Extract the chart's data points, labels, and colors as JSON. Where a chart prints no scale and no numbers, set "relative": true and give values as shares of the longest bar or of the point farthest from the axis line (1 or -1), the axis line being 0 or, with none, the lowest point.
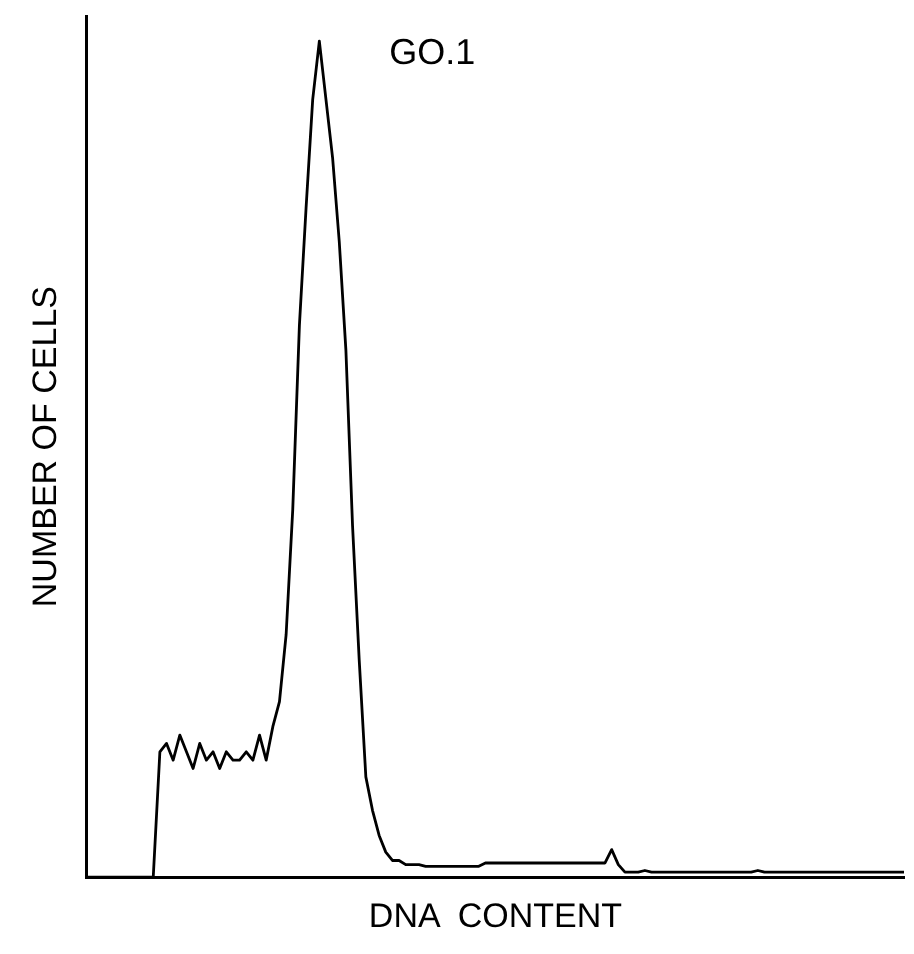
{
  "chart_data": {
    "type": "line",
    "relative": true,
    "xlabel": "DNA  CONTENT",
    "ylabel": "NUMBER OF CELLS",
    "annotations": [
      "GO.1"
    ],
    "marker": "none",
    "grid": false,
    "legend": false,
    "categories": [
      null,
      null,
      null,
      null,
      null,
      null,
      null,
      null,
      null,
      null,
      null,
      null,
      null,
      null,
      null,
      null,
      null,
      null,
      null,
      null,
      null,
      null,
      null,
      null,
      null,
      null,
      null,
      null,
      null,
      null,
      null,
      null,
      null,
      null,
      null,
      null,
      null,
      null,
      null,
      null,
      null,
      null,
      null,
      null,
      null,
      null,
      null,
      null,
      null,
      null,
      null,
      null,
      null,
      null,
      null,
      null,
      null,
      null,
      null,
      null,
      null,
      null,
      null,
      null,
      null,
      null,
      null,
      null,
      null,
      null,
      null,
      null,
      null,
      null,
      null,
      null,
      null,
      null,
      null,
      null,
      null,
      null,
      null,
      null,
      null,
      null,
      null,
      null,
      null,
      null,
      null,
      null,
      null,
      null,
      null,
      null,
      null,
      null,
      null,
      null,
      null,
      null,
      null,
      null,
      null,
      null,
      null,
      null,
      null,
      null,
      null,
      null,
      null,
      null,
      null,
      null,
      null,
      null,
      null,
      null,
      null,
      null,
      null,
      null
    ],
    "series": [
      {
        "color": "#000000",
        "values": [
          0,
          0,
          0,
          0,
          0,
          0,
          0,
          0,
          0,
          0,
          0,
          0.15,
          0.16,
          0.14,
          0.17,
          0.15,
          0.13,
          0.16,
          0.14,
          0.15,
          0.13,
          0.15,
          0.14,
          0.14,
          0.15,
          0.14,
          0.17,
          0.14,
          0.18,
          0.21,
          0.29,
          0.44,
          0.66,
          0.8,
          0.93,
          1,
          0.93,
          0.86,
          0.76,
          0.63,
          0.42,
          0.26,
          0.12,
          0.08,
          0.05,
          0.03,
          0.02,
          0.02,
          0.015,
          0.015,
          0.015,
          0.013,
          0.013,
          0.013,
          0.013,
          0.013,
          0.013,
          0.013,
          0.013,
          0.013,
          0.017,
          0.017,
          0.017,
          0.017,
          0.017,
          0.017,
          0.017,
          0.017,
          0.017,
          0.017,
          0.017,
          0.017,
          0.017,
          0.017,
          0.017,
          0.017,
          0.017,
          0.017,
          0.017,
          0.033,
          0.015,
          0.006,
          0.006,
          0.006,
          0.008,
          0.006,
          0.006,
          0.006,
          0.006,
          0.006,
          0.006,
          0.006,
          0.006,
          0.006,
          0.006,
          0.006,
          0.006,
          0.006,
          0.006,
          0.006,
          0.006,
          0.008,
          0.006,
          0.006,
          0.006,
          0.006,
          0.006,
          0.006,
          0.006,
          0.006,
          0.006,
          0.006,
          0.006,
          0.006,
          0.006,
          0.006,
          0.006,
          0.006,
          0.006,
          0.006,
          0.006,
          0.006,
          0.006,
          0.006
        ]
      }
    ]
  }
}
